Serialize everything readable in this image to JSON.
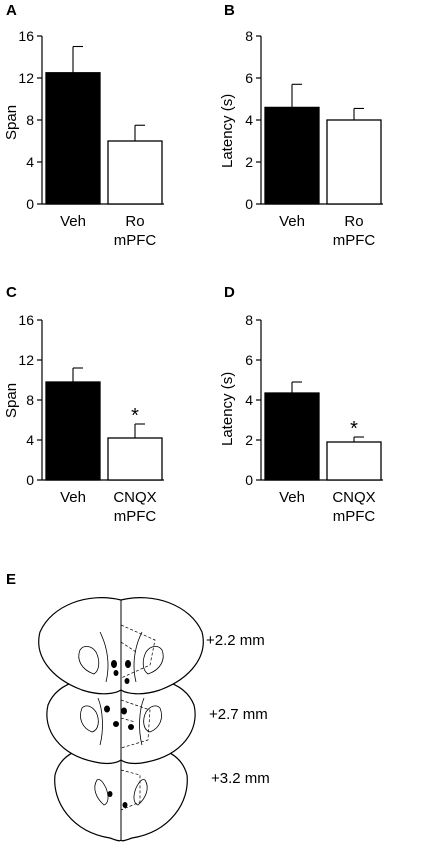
{
  "panels": [
    {
      "letter": "A",
      "ylabel": "Span"
    },
    {
      "letter": "B",
      "ylabel": "Latency (s)"
    },
    {
      "letter": "C",
      "ylabel": "Span"
    },
    {
      "letter": "D",
      "ylabel": "Latency (s)"
    }
  ],
  "chart_data": [
    {
      "type": "bar",
      "panel": "A",
      "categories": [
        "Veh",
        "Ro mPFC"
      ],
      "category_lines": [
        [
          "Veh"
        ],
        [
          "Ro",
          "mPFC"
        ]
      ],
      "values": [
        12.5,
        6.0
      ],
      "errors": [
        2.5,
        1.5
      ],
      "bar_colors": [
        "#000000",
        "#ffffff"
      ],
      "ylabel": "Span",
      "ylim": [
        0,
        16
      ],
      "yticks": [
        0,
        4,
        8,
        12,
        16
      ],
      "significance": [
        "",
        ""
      ]
    },
    {
      "type": "bar",
      "panel": "B",
      "categories": [
        "Veh",
        "Ro mPFC"
      ],
      "category_lines": [
        [
          "Veh"
        ],
        [
          "Ro",
          "mPFC"
        ]
      ],
      "values": [
        4.6,
        4.0
      ],
      "errors": [
        1.1,
        0.55
      ],
      "bar_colors": [
        "#000000",
        "#ffffff"
      ],
      "ylabel": "Latency (s)",
      "ylim": [
        0,
        8
      ],
      "yticks": [
        0,
        2,
        4,
        6,
        8
      ],
      "significance": [
        "",
        ""
      ]
    },
    {
      "type": "bar",
      "panel": "C",
      "categories": [
        "Veh",
        "CNQX mPFC"
      ],
      "category_lines": [
        [
          "Veh"
        ],
        [
          "CNQX",
          "mPFC"
        ]
      ],
      "values": [
        9.8,
        4.2
      ],
      "errors": [
        1.4,
        1.4
      ],
      "bar_colors": [
        "#000000",
        "#ffffff"
      ],
      "ylabel": "Span",
      "ylim": [
        0,
        16
      ],
      "yticks": [
        0,
        4,
        8,
        12,
        16
      ],
      "significance": [
        "",
        "*"
      ]
    },
    {
      "type": "bar",
      "panel": "D",
      "categories": [
        "Veh",
        "CNQX mPFC"
      ],
      "category_lines": [
        [
          "Veh"
        ],
        [
          "CNQX",
          "mPFC"
        ]
      ],
      "values": [
        4.35,
        1.9
      ],
      "errors": [
        0.55,
        0.25
      ],
      "bar_colors": [
        "#000000",
        "#ffffff"
      ],
      "ylabel": "Latency (s)",
      "ylim": [
        0,
        8
      ],
      "yticks": [
        0,
        2,
        4,
        6,
        8
      ],
      "significance": [
        "",
        "*"
      ]
    }
  ],
  "figure_e": {
    "letter": "E",
    "levels": [
      "+2.2 mm",
      "+2.7 mm",
      "+3.2 mm"
    ]
  }
}
